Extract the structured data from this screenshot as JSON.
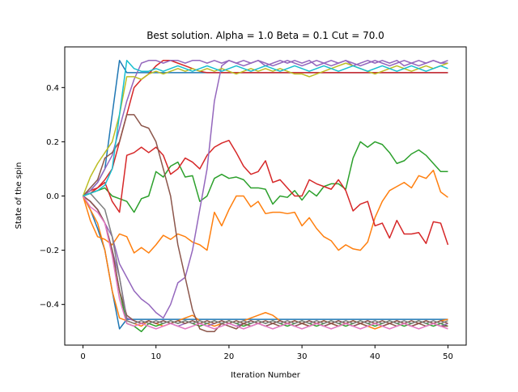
{
  "chart_data": {
    "type": "line",
    "title": "Best solution. Alpha = 1.0 Beta = 0.1 Cut = 70.0",
    "xlabel": "Iteration Number",
    "ylabel": "State of the spin",
    "xlim": [
      -2.5,
      52.5
    ],
    "ylim": [
      -0.55,
      0.55
    ],
    "xticks": [
      0,
      10,
      20,
      30,
      40,
      50
    ],
    "xtick_labels": [
      "0",
      "10",
      "20",
      "30",
      "40",
      "50"
    ],
    "yticks": [
      -0.4,
      -0.2,
      0.0,
      0.2,
      0.4
    ],
    "ytick_labels": [
      "−0.4",
      "−0.2",
      "0.0",
      "0.2",
      "0.4"
    ],
    "grid": false,
    "legend": "none",
    "series": [
      {
        "color": "#1f77b4",
        "values": [
          0.0,
          0.02,
          0.05,
          0.1,
          0.3,
          0.5,
          0.455,
          0.455,
          0.455,
          0.455,
          0.455,
          0.455,
          0.455,
          0.455,
          0.455,
          0.455,
          0.455,
          0.455,
          0.455,
          0.455,
          0.455,
          0.455,
          0.455,
          0.455,
          0.455,
          0.455,
          0.455,
          0.455,
          0.455,
          0.455,
          0.455,
          0.455,
          0.455,
          0.455,
          0.455,
          0.455,
          0.455,
          0.455,
          0.455,
          0.455,
          0.455,
          0.455,
          0.455,
          0.455,
          0.455,
          0.455,
          0.455,
          0.455,
          0.455,
          0.455,
          0.455
        ]
      },
      {
        "color": "#1f77b4",
        "values": [
          0.0,
          -0.05,
          -0.12,
          -0.2,
          -0.35,
          -0.49,
          -0.455,
          -0.455,
          -0.455,
          -0.455,
          -0.455,
          -0.455,
          -0.455,
          -0.455,
          -0.455,
          -0.455,
          -0.455,
          -0.455,
          -0.455,
          -0.455,
          -0.455,
          -0.455,
          -0.455,
          -0.455,
          -0.455,
          -0.455,
          -0.455,
          -0.455,
          -0.455,
          -0.455,
          -0.455,
          -0.455,
          -0.455,
          -0.455,
          -0.455,
          -0.455,
          -0.455,
          -0.455,
          -0.455,
          -0.455,
          -0.455,
          -0.455,
          -0.455,
          -0.455,
          -0.455,
          -0.455,
          -0.455,
          -0.455,
          -0.455,
          -0.455,
          -0.455
        ]
      },
      {
        "color": "#ff7f0e",
        "values": [
          0.0,
          -0.09,
          -0.15,
          -0.16,
          -0.18,
          -0.14,
          -0.15,
          -0.21,
          -0.19,
          -0.21,
          -0.18,
          -0.145,
          -0.16,
          -0.14,
          -0.15,
          -0.17,
          -0.18,
          -0.2,
          -0.06,
          -0.11,
          -0.05,
          -0.0,
          0.0,
          -0.04,
          -0.02,
          -0.065,
          -0.06,
          -0.06,
          -0.065,
          -0.06,
          -0.11,
          -0.08,
          -0.12,
          -0.15,
          -0.165,
          -0.2,
          -0.18,
          -0.195,
          -0.2,
          -0.17,
          -0.08,
          -0.02,
          0.02,
          0.035,
          0.05,
          0.03,
          0.075,
          0.065,
          0.095,
          0.015,
          -0.005
        ]
      },
      {
        "color": "#ff7f0e",
        "values": [
          0.0,
          -0.05,
          -0.1,
          -0.2,
          -0.35,
          -0.45,
          -0.46,
          -0.47,
          -0.48,
          -0.46,
          -0.47,
          -0.48,
          -0.47,
          -0.46,
          -0.45,
          -0.44,
          -0.46,
          -0.47,
          -0.48,
          -0.47,
          -0.46,
          -0.47,
          -0.46,
          -0.45,
          -0.44,
          -0.43,
          -0.44,
          -0.46,
          -0.47,
          -0.46,
          -0.47,
          -0.48,
          -0.47,
          -0.46,
          -0.47,
          -0.48,
          -0.47,
          -0.46,
          -0.47,
          -0.48,
          -0.49,
          -0.48,
          -0.47,
          -0.46,
          -0.47,
          -0.48,
          -0.47,
          -0.46,
          -0.47,
          -0.46,
          -0.455
        ]
      },
      {
        "color": "#2ca02c",
        "values": [
          0.0,
          0.01,
          0.02,
          0.03,
          0.0,
          -0.01,
          -0.02,
          -0.06,
          -0.01,
          0.0,
          0.09,
          0.07,
          0.11,
          0.125,
          0.07,
          0.075,
          -0.02,
          0.0,
          0.065,
          0.08,
          0.065,
          0.07,
          0.06,
          0.03,
          0.03,
          0.025,
          -0.03,
          0.0,
          -0.005,
          0.02,
          -0.015,
          0.02,
          0.0,
          0.035,
          0.045,
          0.045,
          0.025,
          0.14,
          0.2,
          0.18,
          0.2,
          0.19,
          0.16,
          0.12,
          0.13,
          0.155,
          0.17,
          0.15,
          0.12,
          0.09,
          0.09
        ]
      },
      {
        "color": "#2ca02c",
        "values": [
          0.0,
          -0.02,
          -0.05,
          -0.1,
          -0.2,
          -0.35,
          -0.47,
          -0.48,
          -0.5,
          -0.47,
          -0.48,
          -0.47,
          -0.46,
          -0.47,
          -0.46,
          -0.47,
          -0.48,
          -0.47,
          -0.46,
          -0.47,
          -0.46,
          -0.47,
          -0.48,
          -0.47,
          -0.46,
          -0.47,
          -0.46,
          -0.47,
          -0.48,
          -0.47,
          -0.46,
          -0.47,
          -0.48,
          -0.47,
          -0.46,
          -0.47,
          -0.48,
          -0.47,
          -0.46,
          -0.47,
          -0.48,
          -0.47,
          -0.46,
          -0.47,
          -0.48,
          -0.47,
          -0.46,
          -0.47,
          -0.48,
          -0.47,
          -0.48
        ]
      },
      {
        "color": "#d62728",
        "values": [
          0.0,
          0.02,
          0.03,
          0.05,
          -0.02,
          -0.06,
          0.15,
          0.16,
          0.18,
          0.16,
          0.18,
          0.15,
          0.08,
          0.1,
          0.14,
          0.125,
          0.1,
          0.15,
          0.18,
          0.195,
          0.205,
          0.16,
          0.11,
          0.08,
          0.09,
          0.13,
          0.05,
          0.06,
          0.03,
          0.0,
          0.0,
          0.06,
          0.045,
          0.035,
          0.025,
          0.06,
          0.02,
          -0.055,
          -0.03,
          -0.02,
          -0.11,
          -0.1,
          -0.155,
          -0.09,
          -0.14,
          -0.14,
          -0.135,
          -0.175,
          -0.095,
          -0.1,
          -0.18
        ]
      },
      {
        "color": "#d62728",
        "values": [
          0.0,
          0.01,
          0.03,
          0.06,
          0.1,
          0.2,
          0.3,
          0.4,
          0.43,
          0.45,
          0.48,
          0.5,
          0.5,
          0.49,
          0.48,
          0.47,
          0.46,
          0.455,
          0.455,
          0.455,
          0.455,
          0.455,
          0.455,
          0.455,
          0.455,
          0.455,
          0.455,
          0.455,
          0.455,
          0.455,
          0.455,
          0.455,
          0.455,
          0.455,
          0.455,
          0.455,
          0.455,
          0.455,
          0.455,
          0.455,
          0.455,
          0.455,
          0.455,
          0.455,
          0.455,
          0.455,
          0.455,
          0.455,
          0.455,
          0.455,
          0.455
        ]
      },
      {
        "color": "#9467bd",
        "values": [
          0.0,
          -0.02,
          -0.05,
          -0.1,
          -0.15,
          -0.25,
          -0.3,
          -0.35,
          -0.38,
          -0.4,
          -0.43,
          -0.45,
          -0.4,
          -0.32,
          -0.3,
          -0.2,
          -0.05,
          0.1,
          0.35,
          0.48,
          0.5,
          0.49,
          0.5,
          0.49,
          0.5,
          0.48,
          0.49,
          0.5,
          0.49,
          0.5,
          0.49,
          0.5,
          0.48,
          0.49,
          0.5,
          0.49,
          0.5,
          0.48,
          0.49,
          0.5,
          0.49,
          0.5,
          0.49,
          0.5,
          0.48,
          0.49,
          0.5,
          0.49,
          0.5,
          0.49,
          0.5
        ]
      },
      {
        "color": "#9467bd",
        "values": [
          0.0,
          0.02,
          0.05,
          0.1,
          0.15,
          0.25,
          0.35,
          0.43,
          0.49,
          0.5,
          0.5,
          0.49,
          0.5,
          0.5,
          0.49,
          0.5,
          0.5,
          0.49,
          0.5,
          0.49,
          0.5,
          0.49,
          0.48,
          0.49,
          0.5,
          0.49,
          0.48,
          0.49,
          0.5,
          0.49,
          0.48,
          0.49,
          0.5,
          0.49,
          0.48,
          0.49,
          0.5,
          0.49,
          0.48,
          0.49,
          0.5,
          0.49,
          0.48,
          0.49,
          0.5,
          0.49,
          0.48,
          0.49,
          0.5,
          0.49,
          0.49
        ]
      },
      {
        "color": "#9467bd",
        "values": [
          0.0,
          -0.02,
          -0.05,
          -0.1,
          -0.2,
          -0.3,
          -0.45,
          -0.46,
          -0.47,
          -0.46,
          -0.47,
          -0.46,
          -0.47,
          -0.48,
          -0.47,
          -0.46,
          -0.47,
          -0.48,
          -0.47,
          -0.46,
          -0.47,
          -0.48,
          -0.47,
          -0.46,
          -0.47,
          -0.48,
          -0.47,
          -0.46,
          -0.47,
          -0.48,
          -0.47,
          -0.46,
          -0.47,
          -0.48,
          -0.47,
          -0.46,
          -0.47,
          -0.48,
          -0.47,
          -0.46,
          -0.47,
          -0.48,
          -0.47,
          -0.46,
          -0.47,
          -0.48,
          -0.47,
          -0.46,
          -0.47,
          -0.48,
          -0.47
        ]
      },
      {
        "color": "#8c564b",
        "values": [
          0.0,
          0.03,
          0.06,
          0.14,
          0.16,
          0.2,
          0.3,
          0.3,
          0.26,
          0.25,
          0.2,
          0.1,
          0.0,
          -0.18,
          -0.3,
          -0.42,
          -0.49,
          -0.5,
          -0.5,
          -0.47,
          -0.48,
          -0.49,
          -0.47,
          -0.48,
          -0.47,
          -0.48,
          -0.47,
          -0.48,
          -0.47,
          -0.48,
          -0.47,
          -0.48,
          -0.47,
          -0.48,
          -0.47,
          -0.48,
          -0.47,
          -0.48,
          -0.47,
          -0.48,
          -0.47,
          -0.48,
          -0.47,
          -0.48,
          -0.47,
          -0.48,
          -0.47,
          -0.48,
          -0.47,
          -0.48,
          -0.48
        ]
      },
      {
        "color": "#8c564b",
        "values": [
          0.0,
          -0.02,
          -0.05,
          -0.1,
          -0.2,
          -0.35,
          -0.44,
          -0.46,
          -0.47,
          -0.46,
          -0.47,
          -0.46,
          -0.47,
          -0.46,
          -0.47,
          -0.46,
          -0.47,
          -0.46,
          -0.47,
          -0.46,
          -0.47,
          -0.46,
          -0.47,
          -0.46,
          -0.47,
          -0.46,
          -0.47,
          -0.46,
          -0.47,
          -0.46,
          -0.47,
          -0.46,
          -0.47,
          -0.46,
          -0.47,
          -0.46,
          -0.47,
          -0.46,
          -0.47,
          -0.46,
          -0.47,
          -0.46,
          -0.47,
          -0.46,
          -0.47,
          -0.46,
          -0.47,
          -0.46,
          -0.47,
          -0.46,
          -0.47
        ]
      },
      {
        "color": "#e377c2",
        "values": [
          0.0,
          -0.04,
          -0.06,
          -0.1,
          -0.22,
          -0.38,
          -0.47,
          -0.48,
          -0.47,
          -0.48,
          -0.49,
          -0.48,
          -0.47,
          -0.48,
          -0.49,
          -0.48,
          -0.47,
          -0.48,
          -0.49,
          -0.48,
          -0.47,
          -0.48,
          -0.49,
          -0.48,
          -0.47,
          -0.48,
          -0.49,
          -0.48,
          -0.47,
          -0.48,
          -0.49,
          -0.48,
          -0.47,
          -0.48,
          -0.49,
          -0.48,
          -0.47,
          -0.48,
          -0.49,
          -0.48,
          -0.47,
          -0.48,
          -0.49,
          -0.48,
          -0.47,
          -0.48,
          -0.49,
          -0.48,
          -0.47,
          -0.48,
          -0.49
        ]
      },
      {
        "color": "#7f7f7f",
        "values": [
          0.0,
          0.01,
          -0.02,
          -0.05,
          -0.15,
          -0.3,
          -0.46,
          -0.47,
          -0.46,
          -0.47,
          -0.46,
          -0.47,
          -0.46,
          -0.47,
          -0.46,
          -0.47,
          -0.46,
          -0.47,
          -0.46,
          -0.47,
          -0.46,
          -0.47,
          -0.46,
          -0.47,
          -0.46,
          -0.47,
          -0.46,
          -0.47,
          -0.46,
          -0.47,
          -0.46,
          -0.47,
          -0.46,
          -0.47,
          -0.46,
          -0.47,
          -0.46,
          -0.47,
          -0.46,
          -0.47,
          -0.46,
          -0.47,
          -0.46,
          -0.47,
          -0.46,
          -0.47,
          -0.46,
          -0.47,
          -0.46,
          -0.47,
          -0.46
        ]
      },
      {
        "color": "#bcbd22",
        "values": [
          0.0,
          0.07,
          0.12,
          0.16,
          0.2,
          0.3,
          0.44,
          0.44,
          0.43,
          0.45,
          0.46,
          0.45,
          0.46,
          0.47,
          0.46,
          0.47,
          0.46,
          0.47,
          0.46,
          0.47,
          0.46,
          0.45,
          0.46,
          0.47,
          0.46,
          0.47,
          0.46,
          0.47,
          0.46,
          0.45,
          0.45,
          0.44,
          0.45,
          0.46,
          0.47,
          0.48,
          0.49,
          0.48,
          0.47,
          0.46,
          0.45,
          0.46,
          0.47,
          0.48,
          0.47,
          0.46,
          0.47,
          0.48,
          0.47,
          0.48,
          0.49
        ]
      },
      {
        "color": "#17becf",
        "values": [
          0.0,
          0.01,
          0.02,
          0.04,
          0.1,
          0.3,
          0.5,
          0.47,
          0.46,
          0.46,
          0.47,
          0.46,
          0.47,
          0.48,
          0.47,
          0.46,
          0.47,
          0.48,
          0.47,
          0.46,
          0.47,
          0.48,
          0.47,
          0.46,
          0.47,
          0.48,
          0.47,
          0.46,
          0.47,
          0.48,
          0.47,
          0.46,
          0.47,
          0.48,
          0.47,
          0.46,
          0.47,
          0.48,
          0.47,
          0.46,
          0.47,
          0.48,
          0.47,
          0.46,
          0.47,
          0.48,
          0.47,
          0.46,
          0.47,
          0.48,
          0.47
        ]
      }
    ]
  }
}
